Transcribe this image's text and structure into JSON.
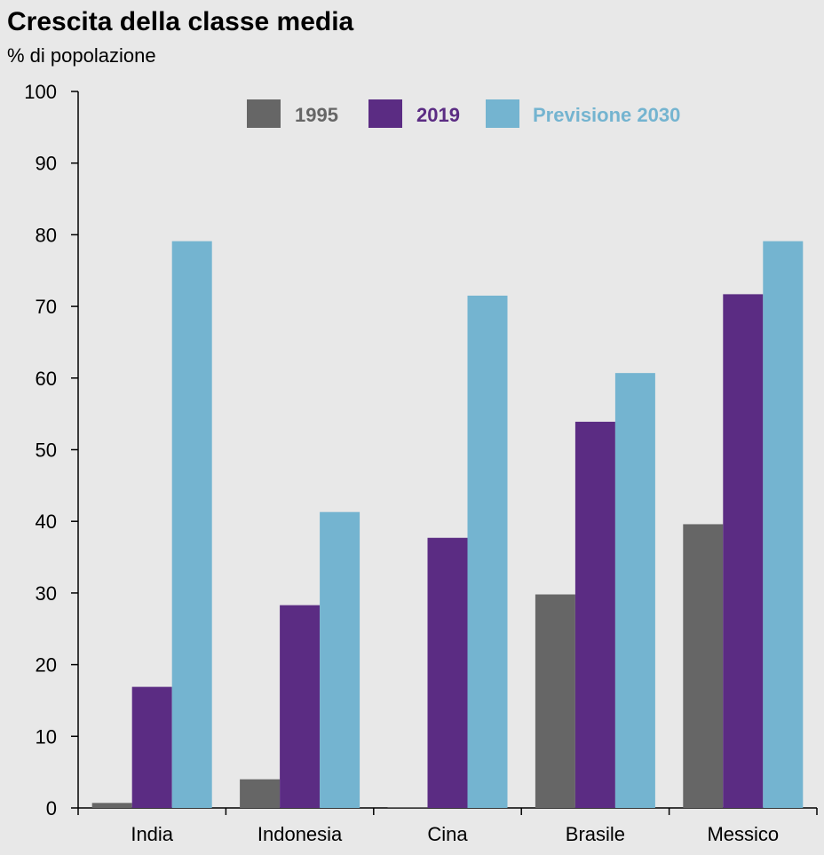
{
  "title": "Crescita della classe media",
  "subtitle": "% di popolazione",
  "colors": {
    "background": "#e8e8e8",
    "axis": "#000000",
    "s1995": "#666666",
    "s2019": "#5b2c83",
    "s2030": "#74b4d0"
  },
  "chart_data": {
    "type": "bar",
    "categories": [
      "India",
      "Indonesia",
      "Cina",
      "Brasile",
      "Messico"
    ],
    "series": [
      {
        "name": "1995",
        "values": [
          0.7,
          4.0,
          0.1,
          29.8,
          39.6
        ]
      },
      {
        "name": "2019",
        "values": [
          16.9,
          28.3,
          37.7,
          53.9,
          71.7
        ]
      },
      {
        "name": "Previsione 2030",
        "values": [
          79.1,
          41.3,
          71.5,
          60.7,
          79.1
        ]
      }
    ],
    "ylim": [
      0,
      100
    ],
    "yticks": [
      "0",
      "10",
      "20",
      "30",
      "40",
      "50",
      "60",
      "70",
      "80",
      "90",
      "100"
    ],
    "grid": false,
    "legend_position": "top"
  }
}
